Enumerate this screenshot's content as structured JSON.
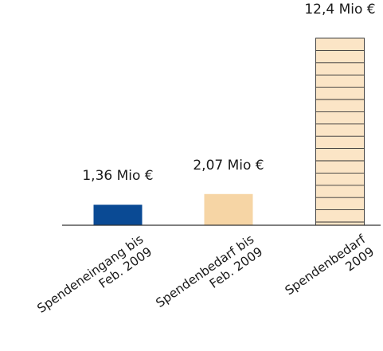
{
  "chart_data": {
    "type": "bar",
    "categories": [
      [
        "Spendeneingang bis",
        "Feb. 2009"
      ],
      [
        "Spendenbedarf bis",
        "Feb. 2009"
      ],
      [
        "Spendenbedarf",
        "2009"
      ]
    ],
    "values": [
      1.36,
      2.07,
      12.4
    ],
    "value_labels": [
      "1,36 Mio €",
      "2,07 Mio €",
      "12,4 Mio €"
    ],
    "colors": [
      "#0a4a94",
      "#f6d5a5",
      "#fbe5c6"
    ],
    "bar_stroke": "#333333",
    "ylim": [
      0,
      12.4
    ],
    "title": "",
    "xlabel": "",
    "ylabel": "",
    "grid": false,
    "legend": false
  }
}
